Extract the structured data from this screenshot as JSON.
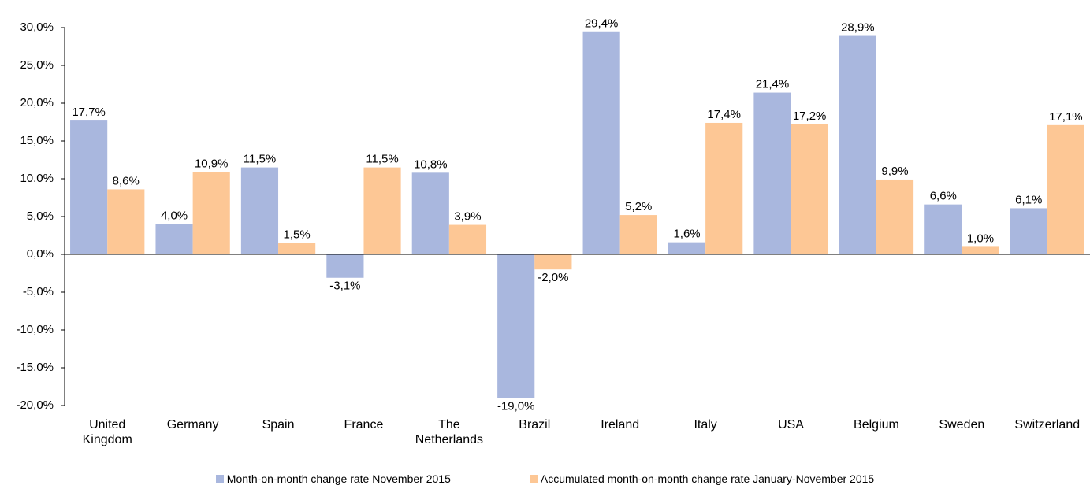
{
  "chart_data": {
    "type": "bar",
    "categories": [
      "United Kingdom",
      "Germany",
      "Spain",
      "France",
      "The Netherlands",
      "Brazil",
      "Ireland",
      "Italy",
      "USA",
      "Belgium",
      "Sweden",
      "Switzerland"
    ],
    "series": [
      {
        "name": "Month-on-month change rate November 2015",
        "color": "#a9b7de",
        "values": [
          17.7,
          4.0,
          11.5,
          -3.1,
          10.8,
          -19.0,
          29.4,
          1.6,
          21.4,
          28.9,
          6.6,
          6.1
        ],
        "value_labels": [
          "17,7%",
          "4,0%",
          "11,5%",
          "-3,1%",
          "10,8%",
          "-19,0%",
          "29,4%",
          "1,6%",
          "21,4%",
          "28,9%",
          "6,6%",
          "6,1%"
        ]
      },
      {
        "name": "Accumulated month-on-month change rate January-November 2015",
        "color": "#fdc795",
        "values": [
          8.6,
          10.9,
          1.5,
          11.5,
          3.9,
          -2.0,
          5.2,
          17.4,
          17.2,
          9.9,
          1.0,
          17.1
        ],
        "value_labels": [
          "8,6%",
          "10,9%",
          "1,5%",
          "11,5%",
          "3,9%",
          "-2,0%",
          "5,2%",
          "17,4%",
          "17,2%",
          "9,9%",
          "1,0%",
          "17,1%"
        ]
      }
    ],
    "ylim": [
      -20,
      30
    ],
    "yticks": [
      {
        "value": -20,
        "label": "-20,0%"
      },
      {
        "value": -15,
        "label": "-15,0%"
      },
      {
        "value": -10,
        "label": "-10,0%"
      },
      {
        "value": -5,
        "label": "-5,0%"
      },
      {
        "value": 0,
        "label": "0,0%"
      },
      {
        "value": 5,
        "label": "5,0%"
      },
      {
        "value": 10,
        "label": "10,0%"
      },
      {
        "value": 15,
        "label": "15,0%"
      },
      {
        "value": 20,
        "label": "20,0%"
      },
      {
        "value": 25,
        "label": "25,0%"
      },
      {
        "value": 30,
        "label": "30,0%"
      }
    ],
    "grid": false,
    "legend": "bottom"
  }
}
